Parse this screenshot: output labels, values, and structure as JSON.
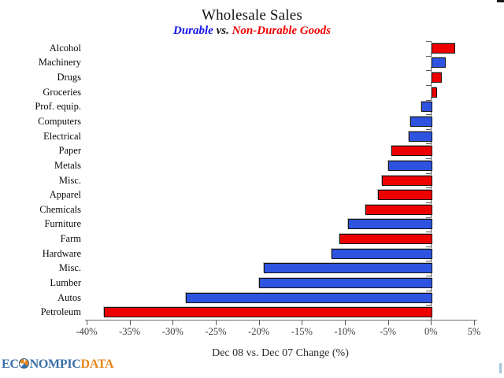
{
  "title": "Wholesale Sales",
  "subtitle": {
    "durable": "Durable",
    "vs": " vs. ",
    "non_durable": "Non-Durable Goods"
  },
  "colors": {
    "durable": "#2e53e0",
    "non_durable": "#ee0000",
    "axis": "#6e6e6e",
    "subtitle_blue": "#1414e6",
    "subtitle_red": "#ee0000",
    "logo_blue": "#3a6ea5",
    "logo_orange": "#e8861c"
  },
  "chart_data": {
    "type": "bar",
    "orientation": "horizontal",
    "title": "Wholesale Sales",
    "subtitle": "Durable vs. Non-Durable Goods",
    "xlabel": "Dec 08 vs. Dec 07 Change (%)",
    "xlim": [
      -40,
      5
    ],
    "xticks": [
      -40,
      -35,
      -30,
      -25,
      -20,
      -15,
      -10,
      -5,
      0,
      5
    ],
    "xtick_labels": [
      "-40%",
      "-35%",
      "-30%",
      "-25%",
      "-20%",
      "-15%",
      "-10%",
      "-5%",
      "0%",
      "5%"
    ],
    "legend": {
      "durable_label": "Durable",
      "non_durable_label": "Non-Durable Goods"
    },
    "grid": false,
    "categories": [
      {
        "label": "Alcohol",
        "value": 2.5,
        "group": "non-durable"
      },
      {
        "label": "Machinery",
        "value": 1.4,
        "group": "durable"
      },
      {
        "label": "Drugs",
        "value": 1.0,
        "group": "non-durable"
      },
      {
        "label": "Groceries",
        "value": 0.4,
        "group": "non-durable"
      },
      {
        "label": "Prof. equip.",
        "value": -1.1,
        "group": "durable"
      },
      {
        "label": "Computers",
        "value": -2.4,
        "group": "durable"
      },
      {
        "label": "Electrical",
        "value": -2.6,
        "group": "durable"
      },
      {
        "label": "Paper",
        "value": -4.6,
        "group": "non-durable"
      },
      {
        "label": "Metals",
        "value": -5.0,
        "group": "durable"
      },
      {
        "label": "Misc.",
        "value": -5.7,
        "group": "non-durable"
      },
      {
        "label": "Apparel",
        "value": -6.2,
        "group": "non-durable"
      },
      {
        "label": "Chemicals",
        "value": -7.6,
        "group": "non-durable"
      },
      {
        "label": "Furniture",
        "value": -9.6,
        "group": "durable"
      },
      {
        "label": "Farm",
        "value": -10.6,
        "group": "non-durable"
      },
      {
        "label": "Hardware",
        "value": -11.6,
        "group": "durable"
      },
      {
        "label": "Misc.",
        "value": -19.4,
        "group": "durable"
      },
      {
        "label": "Lumber",
        "value": -20.0,
        "group": "durable"
      },
      {
        "label": "Autos",
        "value": -28.5,
        "group": "durable"
      },
      {
        "label": "Petroleum",
        "value": -38.0,
        "group": "non-durable"
      }
    ]
  },
  "logo": {
    "prefix": "EC",
    "middle": "NOMPIC",
    "suffix": "DATA"
  }
}
